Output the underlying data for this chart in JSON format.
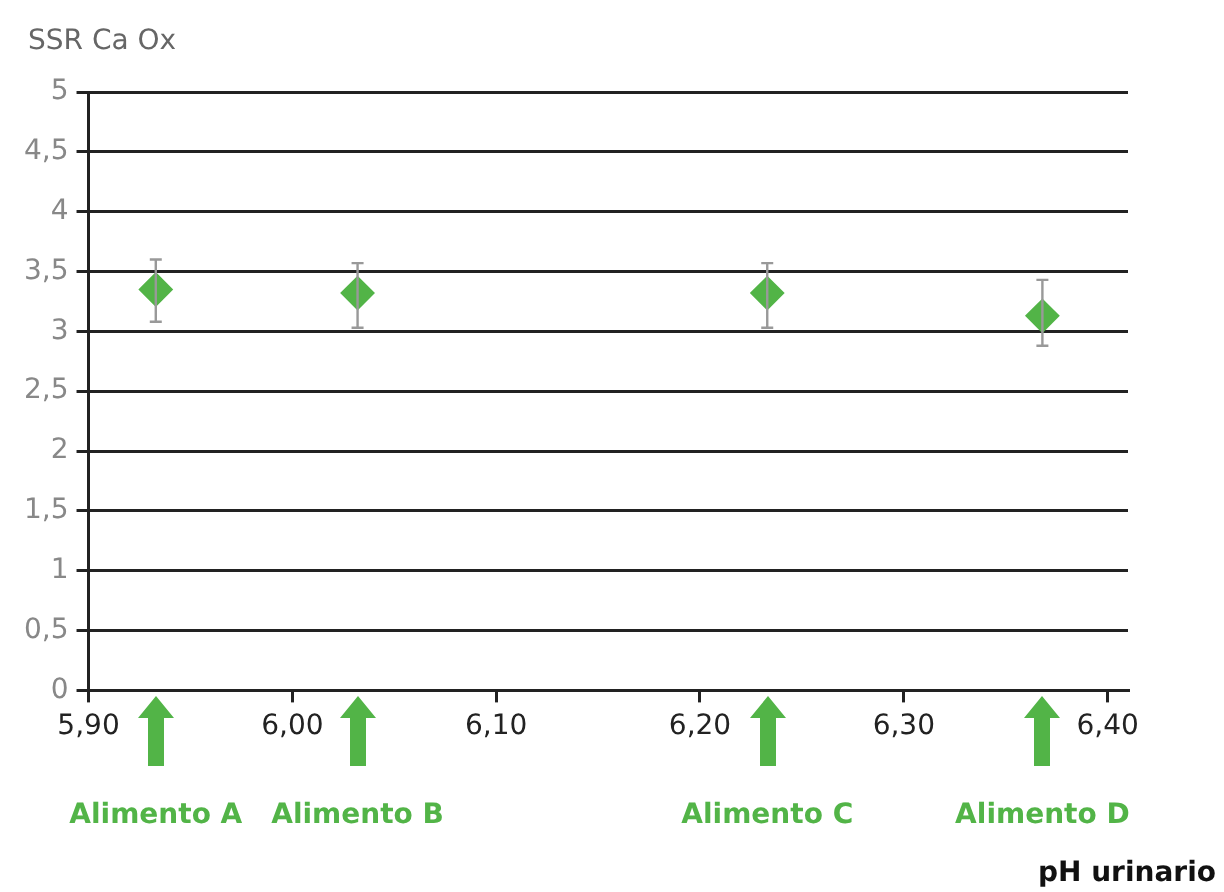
{
  "chart_data": {
    "type": "scatter",
    "ylabel": "SSR Ca Ox",
    "xlabel": "pH urinario",
    "x": [
      5.933,
      6.032,
      6.233,
      6.368
    ],
    "series": [
      {
        "color": "#52b447",
        "values": [
          3.35,
          3.32,
          3.32,
          3.13
        ],
        "errors": [
          [
            3.08,
            3.6
          ],
          [
            3.03,
            3.57
          ],
          [
            3.03,
            3.57
          ],
          [
            2.88,
            3.43
          ]
        ]
      }
    ],
    "xlim": [
      5.9,
      6.41
    ],
    "xticks": [
      {
        "value": 5.9,
        "label": "5,90"
      },
      {
        "value": 6.0,
        "label": "6,00"
      },
      {
        "value": 6.1,
        "label": "6,10"
      },
      {
        "value": 6.2,
        "label": "6,20"
      },
      {
        "value": 6.3,
        "label": "6,30"
      },
      {
        "value": 6.4,
        "label": "6,40"
      }
    ],
    "ylim": [
      0,
      5
    ],
    "yticks": [
      0,
      {
        "value": 0.5,
        "label": "0,5"
      },
      1,
      {
        "value": 1.5,
        "label": "1,5"
      },
      2,
      {
        "value": 2.5,
        "label": "2,5"
      },
      3,
      {
        "value": 3.5,
        "label": "3,5"
      },
      4,
      {
        "value": 4.5,
        "label": "4,5"
      },
      5
    ],
    "grid": "y",
    "marker": "diamond",
    "legend": false,
    "annotations": [
      "Alimento A",
      "Alimento B",
      "Alimento C",
      "Alimento D"
    ]
  }
}
